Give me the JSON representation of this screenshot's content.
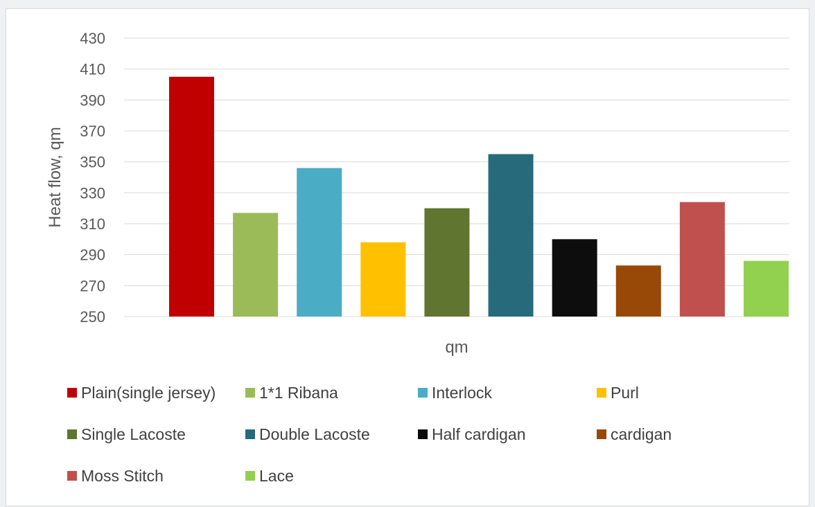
{
  "chart_data": {
    "type": "bar",
    "title": "",
    "xlabel": "qm",
    "ylabel": "Heat flow, qm",
    "ylim": [
      250,
      430
    ],
    "yticks": [
      250,
      270,
      290,
      310,
      330,
      350,
      370,
      390,
      410,
      430
    ],
    "grid": true,
    "legend_position": "bottom",
    "series": [
      {
        "name": "Plain(single jersey)",
        "value": 405,
        "color": "#c00000"
      },
      {
        "name": "1*1 Ribana",
        "value": 317,
        "color": "#9bbb59"
      },
      {
        "name": "Interlock",
        "value": 346,
        "color": "#4bacc6"
      },
      {
        "name": "Purl",
        "value": 298,
        "color": "#ffc000"
      },
      {
        "name": "Single Lacoste",
        "value": 320,
        "color": "#5f7530"
      },
      {
        "name": "Double Lacoste",
        "value": 355,
        "color": "#276a7c"
      },
      {
        "name": "Half cardigan",
        "value": 300,
        "color": "#0d0d0d"
      },
      {
        "name": "cardigan",
        "value": 283,
        "color": "#984807"
      },
      {
        "name": "Moss Stitch",
        "value": 324,
        "color": "#c0504d"
      },
      {
        "name": "Lace",
        "value": 286,
        "color": "#92d050"
      }
    ]
  }
}
